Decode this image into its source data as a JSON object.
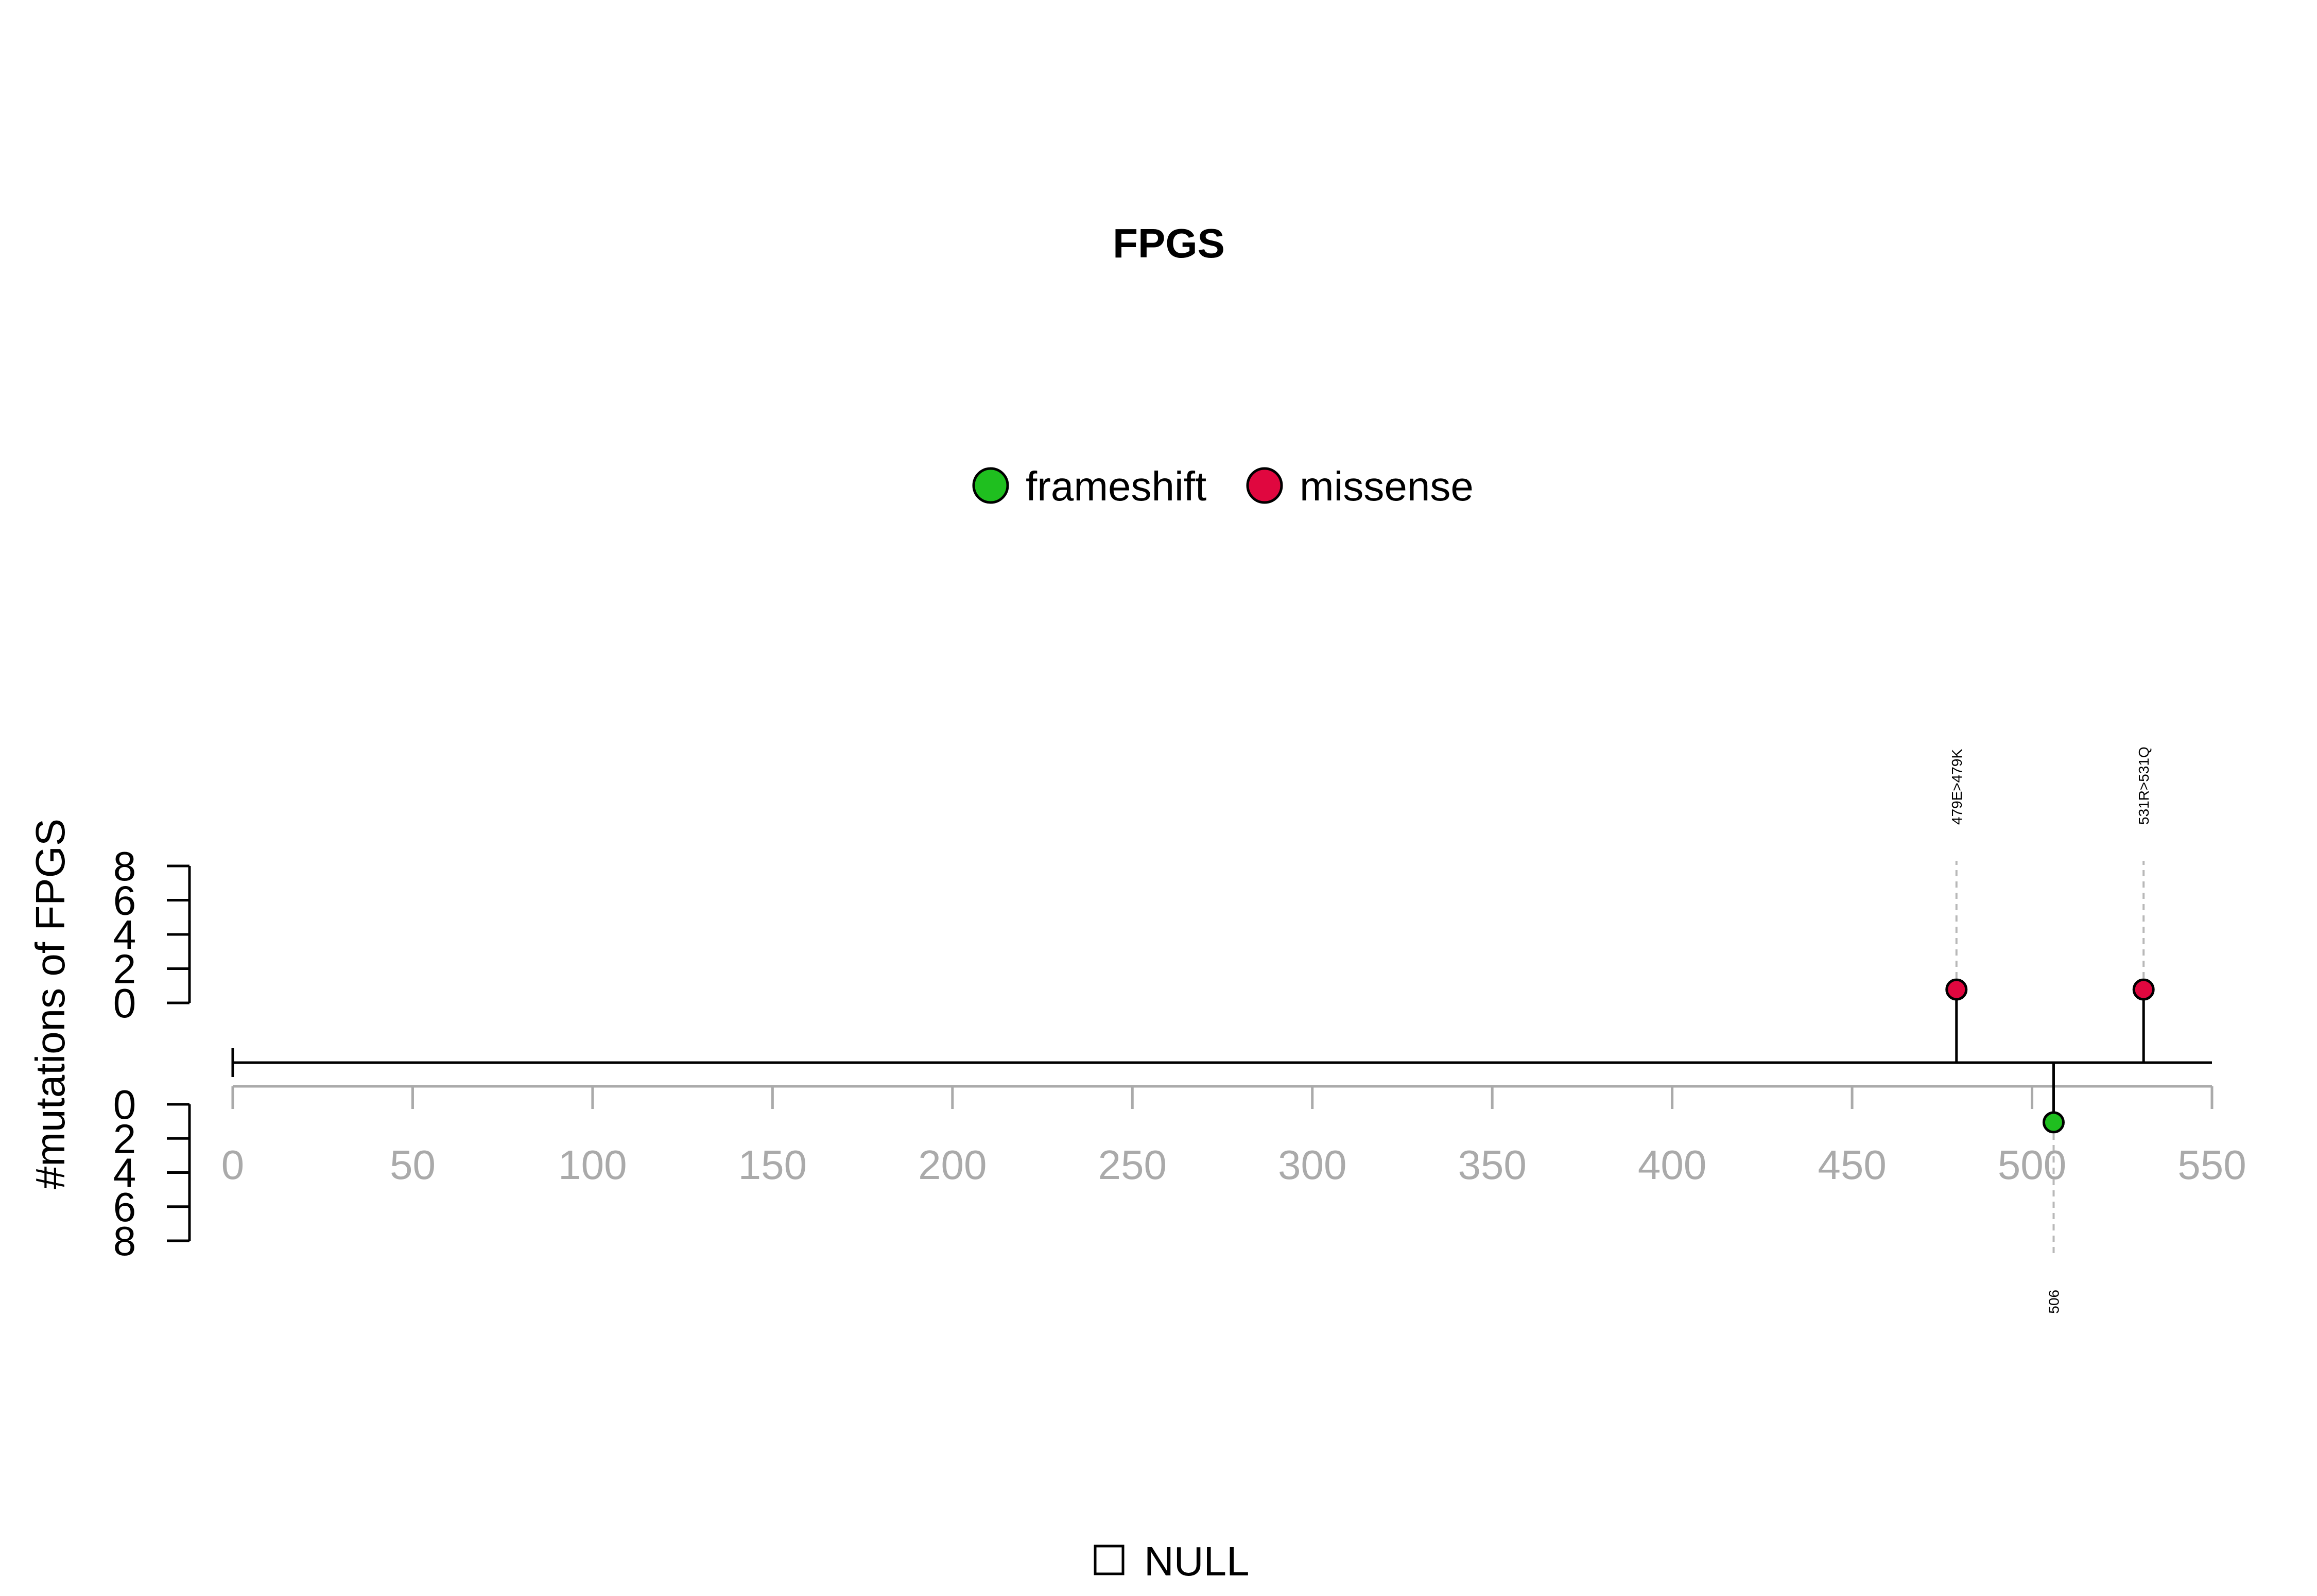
{
  "chart_data": {
    "type": "lollipop",
    "title": "FPGS",
    "ylabel": "#mutations of FPGS",
    "xlim": [
      0,
      550
    ],
    "x_ticks": [
      0,
      50,
      100,
      150,
      200,
      250,
      300,
      350,
      400,
      450,
      500,
      550
    ],
    "protein_length": 550,
    "y_top_ticks": [
      "8",
      "6",
      "4",
      "2",
      "0"
    ],
    "y_bottom_ticks": [
      "0",
      "2",
      "4",
      "6",
      "8"
    ],
    "y_range": [
      0,
      8
    ],
    "legend": [
      {
        "name": "frameshift",
        "color": "#1fbf1f"
      },
      {
        "name": "missense",
        "color": "#e0073f"
      }
    ],
    "mutations": [
      {
        "position": 479,
        "count": 1,
        "type": "missense",
        "label": "479E>479K",
        "side": "top"
      },
      {
        "position": 531,
        "count": 1,
        "type": "missense",
        "label": "531R>531Q",
        "side": "top"
      },
      {
        "position": 506,
        "count": 1,
        "type": "frameshift",
        "label": "506",
        "side": "bottom"
      }
    ],
    "domain_legend": "NULL"
  }
}
